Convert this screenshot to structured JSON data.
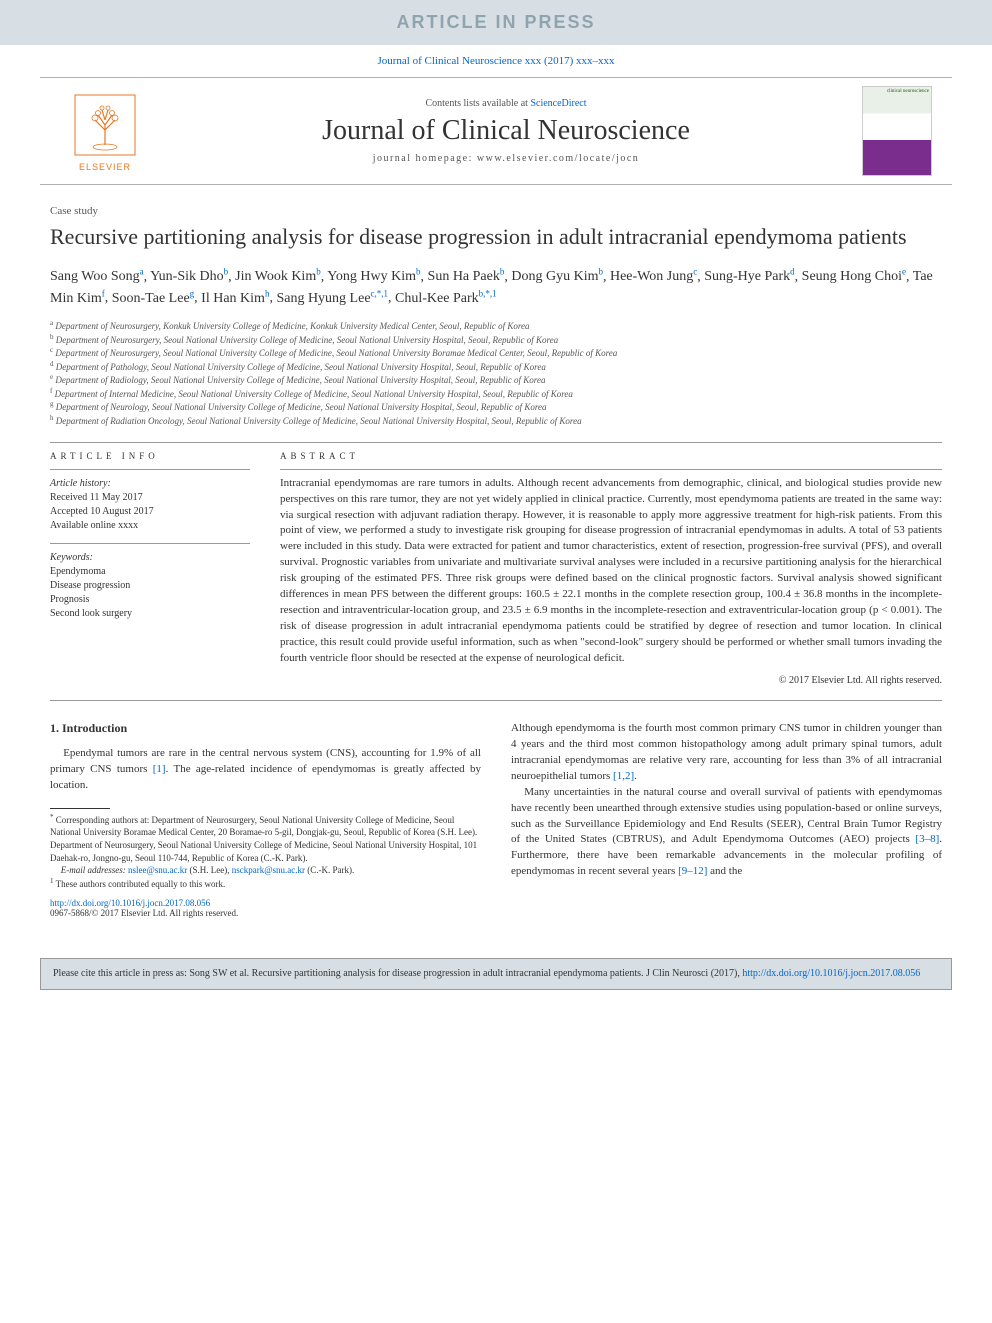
{
  "banner": "ARTICLE IN PRESS",
  "journal_ref": "Journal of Clinical Neuroscience xxx (2017) xxx–xxx",
  "header": {
    "contents_prefix": "Contents lists available at ",
    "contents_link": "ScienceDirect",
    "journal_name": "Journal of Clinical Neuroscience",
    "homepage_prefix": "journal homepage: ",
    "homepage_url": "www.elsevier.com/locate/jocn",
    "publisher_logo": "ELSEVIER",
    "cover_text": "clinical neuroscience"
  },
  "article_type": "Case study",
  "title": "Recursive partitioning analysis for disease progression in adult intracranial ependymoma patients",
  "authors": [
    {
      "name": "Sang Woo Song",
      "aff": "a"
    },
    {
      "name": "Yun-Sik Dho",
      "aff": "b"
    },
    {
      "name": "Jin Wook Kim",
      "aff": "b"
    },
    {
      "name": "Yong Hwy Kim",
      "aff": "b"
    },
    {
      "name": "Sun Ha Paek",
      "aff": "b"
    },
    {
      "name": "Dong Gyu Kim",
      "aff": "b"
    },
    {
      "name": "Hee-Won Jung",
      "aff": "c"
    },
    {
      "name": "Sung-Hye Park",
      "aff": "d"
    },
    {
      "name": "Seung Hong Choi",
      "aff": "e"
    },
    {
      "name": "Tae Min Kim",
      "aff": "f"
    },
    {
      "name": "Soon-Tae Lee",
      "aff": "g"
    },
    {
      "name": "Il Han Kim",
      "aff": "h"
    },
    {
      "name": "Sang Hyung Lee",
      "aff": "c,*,1"
    },
    {
      "name": "Chul-Kee Park",
      "aff": "b,*,1"
    }
  ],
  "affiliations": [
    {
      "key": "a",
      "text": "Department of Neurosurgery, Konkuk University College of Medicine, Konkuk University Medical Center, Seoul, Republic of Korea"
    },
    {
      "key": "b",
      "text": "Department of Neurosurgery, Seoul National University College of Medicine, Seoul National University Hospital, Seoul, Republic of Korea"
    },
    {
      "key": "c",
      "text": "Department of Neurosurgery, Seoul National University College of Medicine, Seoul National University Boramae Medical Center, Seoul, Republic of Korea"
    },
    {
      "key": "d",
      "text": "Department of Pathology, Seoul National University College of Medicine, Seoul National University Hospital, Seoul, Republic of Korea"
    },
    {
      "key": "e",
      "text": "Department of Radiology, Seoul National University College of Medicine, Seoul National University Hospital, Seoul, Republic of Korea"
    },
    {
      "key": "f",
      "text": "Department of Internal Medicine, Seoul National University College of Medicine, Seoul National University Hospital, Seoul, Republic of Korea"
    },
    {
      "key": "g",
      "text": "Department of Neurology, Seoul National University College of Medicine, Seoul National University Hospital, Seoul, Republic of Korea"
    },
    {
      "key": "h",
      "text": "Department of Radiation Oncology, Seoul National University College of Medicine, Seoul National University Hospital, Seoul, Republic of Korea"
    }
  ],
  "info": {
    "heading": "ARTICLE INFO",
    "history_label": "Article history:",
    "received": "Received 11 May 2017",
    "accepted": "Accepted 10 August 2017",
    "online": "Available online xxxx",
    "keywords_label": "Keywords:",
    "keywords": [
      "Ependymoma",
      "Disease progression",
      "Prognosis",
      "Second look surgery"
    ]
  },
  "abstract": {
    "heading": "ABSTRACT",
    "text": "Intracranial ependymomas are rare tumors in adults. Although recent advancements from demographic, clinical, and biological studies provide new perspectives on this rare tumor, they are not yet widely applied in clinical practice. Currently, most ependymoma patients are treated in the same way: via surgical resection with adjuvant radiation therapy. However, it is reasonable to apply more aggressive treatment for high-risk patients. From this point of view, we performed a study to investigate risk grouping for disease progression of intracranial ependymomas in adults. A total of 53 patients were included in this study. Data were extracted for patient and tumor characteristics, extent of resection, progression-free survival (PFS), and overall survival. Prognostic variables from univariate and multivariate survival analyses were included in a recursive partitioning analysis for the hierarchical risk grouping of the estimated PFS. Three risk groups were defined based on the clinical prognostic factors. Survival analysis showed significant differences in mean PFS between the different groups: 160.5 ± 22.1 months in the complete resection group, 100.4 ± 36.8 months in the incomplete-resection and intraventricular-location group, and 23.5 ± 6.9 months in the incomplete-resection and extraventricular-location group (p < 0.001). The risk of disease progression in adult intracranial ependymoma patients could be stratified by degree of resection and tumor location. In clinical practice, this result could provide useful information, such as when \"second-look\" surgery should be performed or whether small tumors invading the fourth ventricle floor should be resected at the expense of neurological deficit.",
    "copyright": "© 2017 Elsevier Ltd. All rights reserved."
  },
  "intro": {
    "heading": "1. Introduction",
    "p1_part1": "Ependymal tumors are rare in the central nervous system (CNS), accounting for 1.9% of all primary CNS tumors ",
    "p1_cite1": "[1]",
    "p1_part2": ". The age-related incidence of ependymomas is greatly affected by location.",
    "p2_part1": "Although ependymoma is the fourth most common primary CNS tumor in children younger than 4 years and the third most common histopathology among adult primary spinal tumors, adult intracranial ependymomas are relative very rare, accounting for less than 3% of all intracranial neuroepithelial tumors ",
    "p2_cite1": "[1,2]",
    "p2_part2": ".",
    "p3_part1": "Many uncertainties in the natural course and overall survival of patients with ependymomas have recently been unearthed through extensive studies using population-based or online surveys, such as the Surveillance Epidemiology and End Results (SEER), Central Brain Tumor Registry of the United States (CBTRUS), and Adult Ependymoma Outcomes (AEO) projects ",
    "p3_cite1": "[3–8]",
    "p3_part2": ". Furthermore, there have been remarkable advancements in the molecular profiling of ependymomas in recent several years ",
    "p3_cite2": "[9–12]",
    "p3_part3": " and the"
  },
  "footnotes": {
    "corr_marker": "*",
    "corr_text": " Corresponding authors at: Department of Neurosurgery, Seoul National University College of Medicine, Seoul National University Boramae Medical Center, 20 Boramae-ro 5-gil, Dongjak-gu, Seoul, Republic of Korea (S.H. Lee). Department of Neurosurgery, Seoul National University College of Medicine, Seoul National University Hospital, 101 Daehak-ro, Jongno-gu, Seoul 110-744, Republic of Korea (C.-K. Park).",
    "email_label": "E-mail addresses: ",
    "email1": "nslee@snu.ac.kr",
    "email1_who": " (S.H. Lee), ",
    "email2": "nsckpark@snu.ac.kr",
    "email2_who": " (C.-K. Park).",
    "equal_marker": "1",
    "equal_text": " These authors contributed equally to this work."
  },
  "doi": {
    "url": "http://dx.doi.org/10.1016/j.jocn.2017.08.056",
    "issn": "0967-5868/© 2017 Elsevier Ltd. All rights reserved."
  },
  "cite_box": {
    "prefix": "Please cite this article in press as: Song SW et al. Recursive partitioning analysis for disease progression in adult intracranial ependymoma patients. J Clin Neurosci (2017), ",
    "url": "http://dx.doi.org/10.1016/j.jocn.2017.08.056"
  },
  "colors": {
    "banner_bg": "#d7dfe5",
    "banner_text": "#90a4ae",
    "link": "#0066cc",
    "elsevier": "#e87722",
    "rule": "#999999",
    "text": "#333333"
  }
}
